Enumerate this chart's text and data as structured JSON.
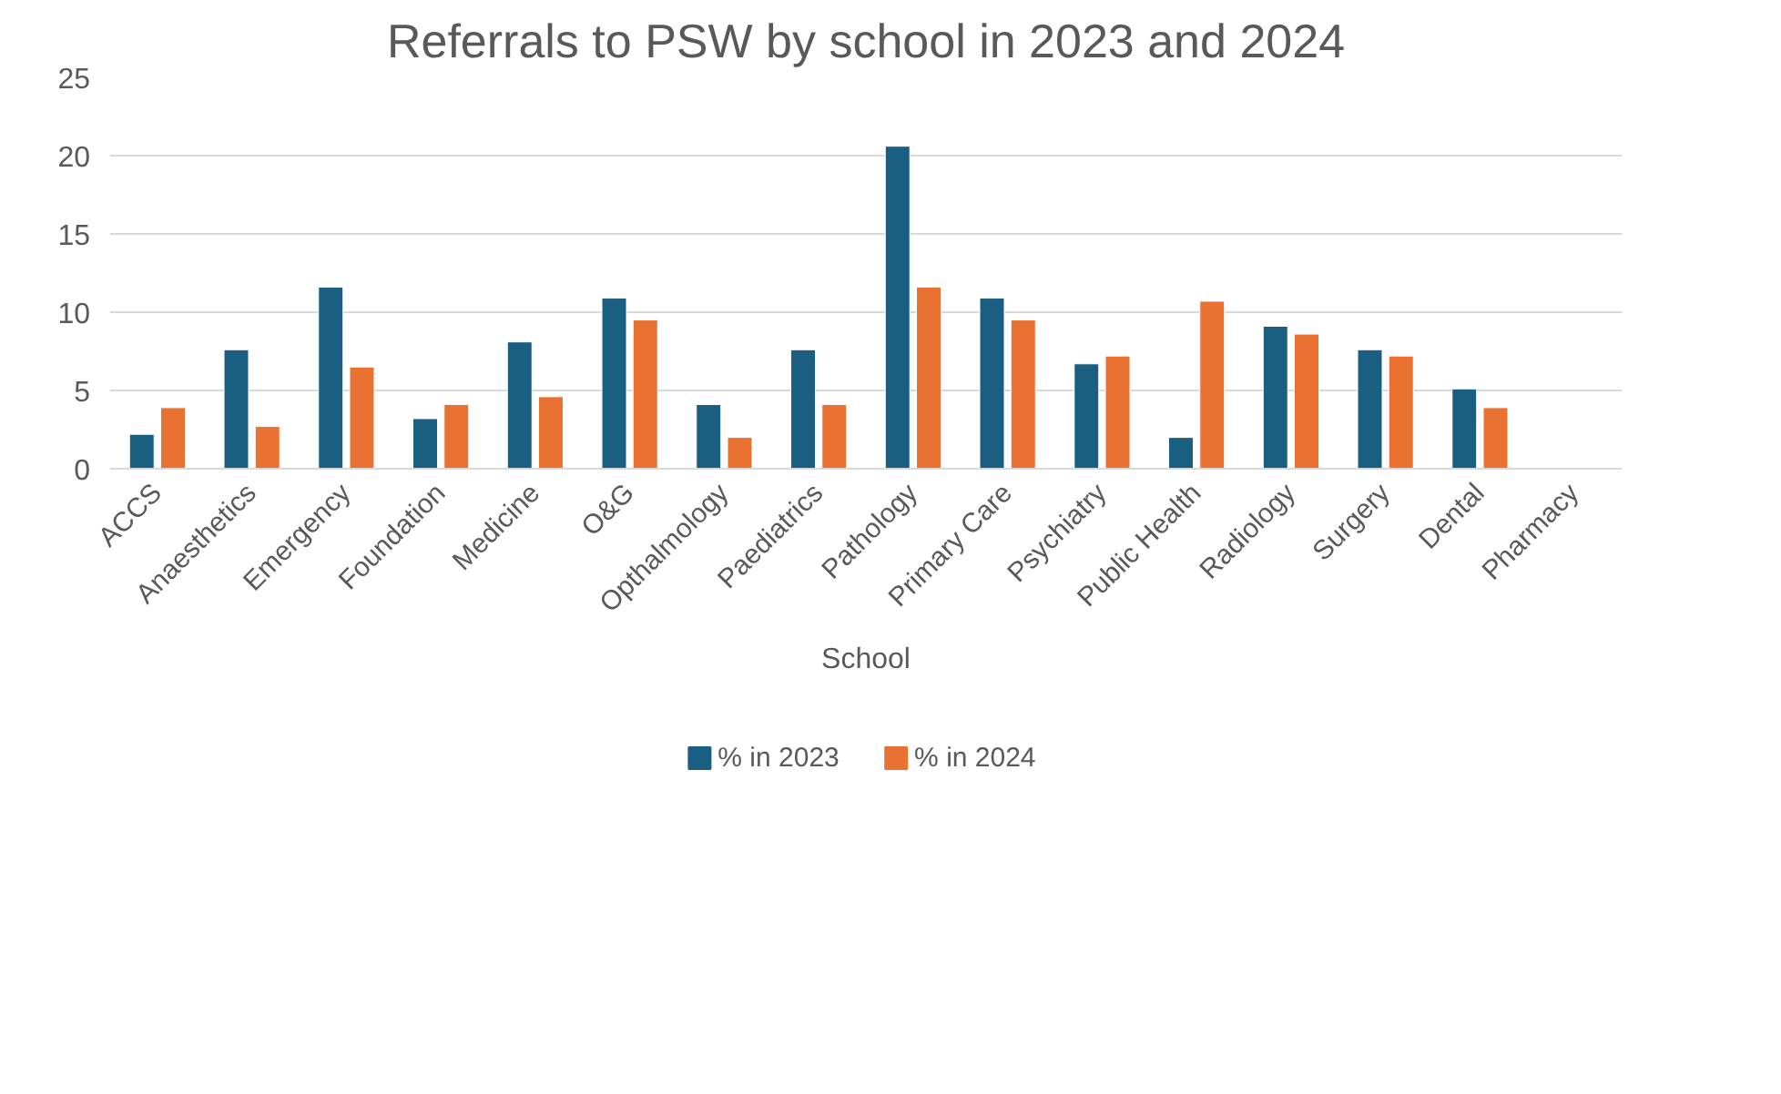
{
  "chart_data": {
    "type": "bar",
    "title": "Referrals to PSW by school in 2023 and 2024",
    "xlabel": "School",
    "categories": [
      "ACCS",
      "Anaesthetics",
      "Emergency",
      "Foundation",
      "Medicine",
      "O&G",
      "Opthalmology",
      "Paediatrics",
      "Pathology",
      "Primary Care",
      "Psychiatry",
      "Public Health",
      "Radiology",
      "Surgery",
      "Dental",
      "Pharmacy"
    ],
    "series": [
      {
        "name": "% in 2023",
        "color": "#1a5f82",
        "values": [
          2.2,
          7.6,
          11.6,
          3.2,
          8.1,
          10.9,
          4.1,
          7.6,
          20.6,
          10.9,
          6.7,
          2.0,
          9.1,
          7.6,
          5.1,
          null
        ]
      },
      {
        "name": "% in 2024",
        "color": "#e97132",
        "values": [
          3.9,
          2.7,
          6.5,
          4.1,
          4.6,
          9.5,
          2.0,
          4.1,
          11.6,
          9.5,
          7.2,
          10.7,
          8.6,
          7.2,
          3.9,
          null
        ]
      }
    ],
    "ylim": [
      0,
      25
    ],
    "yticks": [
      0,
      5,
      10,
      15,
      20,
      25
    ],
    "grid": "y",
    "legend": "bottom"
  }
}
